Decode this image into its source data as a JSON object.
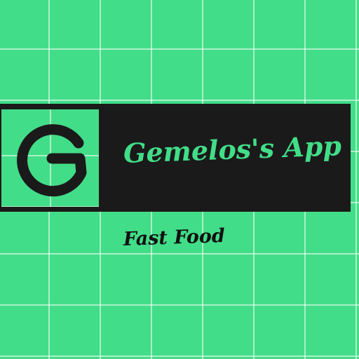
{
  "branding": {
    "logo_letter": "G",
    "app_name": "Gemelos's App",
    "tagline": "Fast Food"
  },
  "colors": {
    "background": "#42dd88",
    "grid_lines": "#ffffff",
    "banner": "#1a1a1a",
    "title_text": "#42dd88",
    "tagline_text": "#111111"
  },
  "icons": {
    "logo": "letter-g-logo-icon"
  }
}
